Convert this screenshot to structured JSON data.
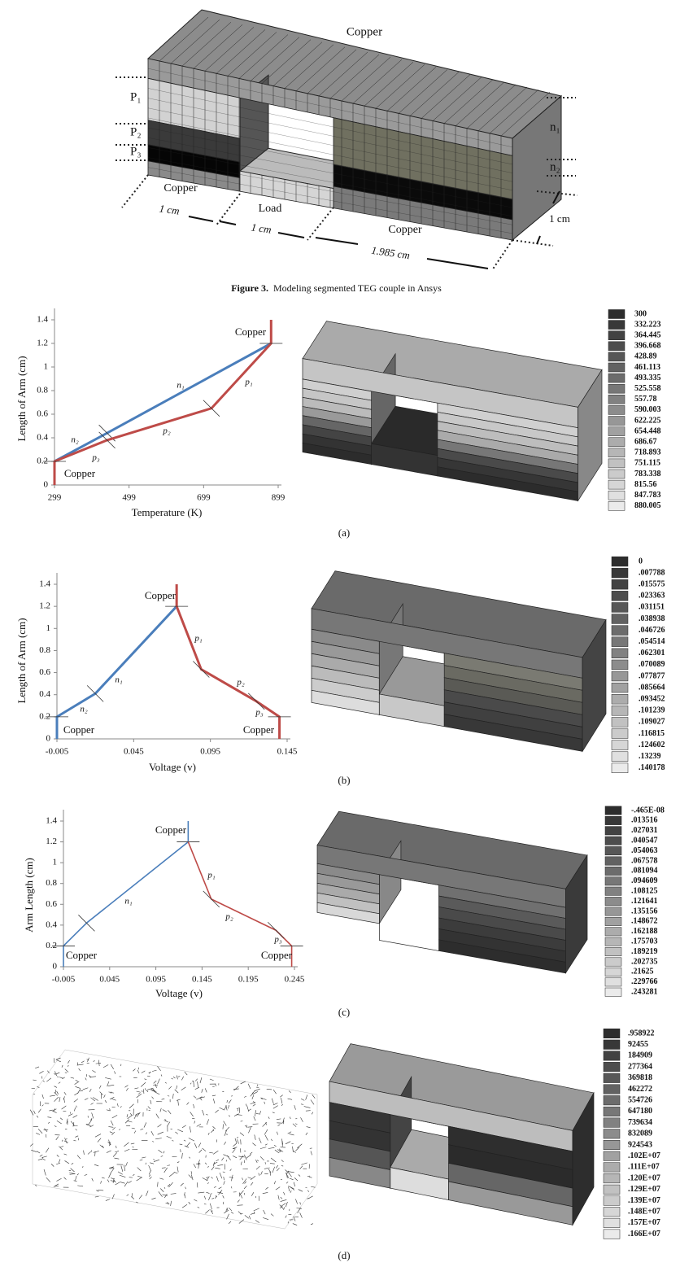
{
  "figure3": {
    "labels": [
      "Copper",
      "P₁",
      "P₂",
      "P₃",
      "n₁",
      "n₂",
      "Copper",
      "Load",
      "Copper"
    ],
    "dimensions": [
      "1 cm",
      "1 cm",
      "1.985 cm",
      "1 cm"
    ],
    "caption": {
      "number": "Figure 3.",
      "text": "Modeling segmented TEG couple in Ansys"
    }
  },
  "chart_data": [
    {
      "type": "line",
      "x_label": "Temperature (K)",
      "y_label": "Length of Arm (cm)",
      "xlim": [
        299,
        899
      ],
      "xticks": [
        299,
        499,
        699,
        899
      ],
      "ylim": [
        0,
        1.4
      ],
      "yticks": [
        0,
        0.2,
        0.4,
        0.6,
        0.8,
        1,
        1.2,
        1.4
      ],
      "series": [
        {
          "color": "#4a7ebb",
          "x": [
            299,
            440,
            880
          ],
          "values": [
            0.2,
            0.44,
            1.2
          ]
        },
        {
          "color": "#be4b48",
          "x": [
            299,
            299,
            440,
            720,
            880,
            880
          ],
          "values": [
            0,
            0.2,
            0.38,
            0.65,
            1.2,
            1.4
          ]
        }
      ],
      "annotations": [
        "Copper",
        "n₁",
        "p₁",
        "p₂",
        "n₂",
        "p₃",
        "Copper"
      ]
    },
    {
      "type": "line",
      "x_label": "Voltage (v)",
      "y_label": "Length of Arm (cm)",
      "xlim": [
        -0.005,
        0.145
      ],
      "xticks": [
        -0.005,
        0.045,
        0.095,
        0.145
      ],
      "ylim": [
        0,
        1.4
      ],
      "yticks": [
        0,
        0.2,
        0.4,
        0.6,
        0.8,
        1,
        1.2,
        1.4
      ],
      "series": [
        {
          "color": "#4a7ebb",
          "x": [
            -0.005,
            -0.005,
            0.02,
            0.073
          ],
          "values": [
            0,
            0.2,
            0.41,
            1.2
          ]
        },
        {
          "color": "#be4b48",
          "x": [
            0.073,
            0.073,
            0.089,
            0.125,
            0.14,
            0.14
          ],
          "values": [
            1.4,
            1.2,
            0.63,
            0.34,
            0.2,
            0
          ]
        }
      ],
      "annotations": [
        "Copper",
        "n₁",
        "p₁",
        "p₂",
        "n₂",
        "p₃",
        "Copper",
        "Copper"
      ]
    },
    {
      "type": "line",
      "x_label": "Voltage  (v)",
      "y_label": "Arm Length (cm)",
      "xlim": [
        -0.005,
        0.245
      ],
      "xticks": [
        -0.005,
        0.045,
        0.095,
        0.145,
        0.195,
        0.245
      ],
      "ylim": [
        0,
        1.4
      ],
      "yticks": [
        0,
        0.2,
        0.4,
        0.6,
        0.8,
        1,
        1.2,
        1.4
      ],
      "series": [
        {
          "color": "#4a7ebb",
          "x": [
            -0.005,
            -0.005,
            0.02,
            0.13,
            0.13
          ],
          "values": [
            0,
            0.2,
            0.42,
            1.2,
            1.4
          ]
        },
        {
          "color": "#be4b48",
          "x": [
            0.13,
            0.155,
            0.225,
            0.242,
            0.242
          ],
          "values": [
            1.2,
            0.65,
            0.35,
            0.2,
            0
          ]
        }
      ],
      "annotations": [
        "Copper",
        "n₁",
        "p₁",
        "p₂",
        "p₃",
        "Copper",
        "Copper"
      ]
    }
  ],
  "legends": [
    [
      "300",
      "332.223",
      "364.445",
      "396.668",
      "428.89",
      "461.113",
      "493.335",
      "525.558",
      "557.78",
      "590.003",
      "622.225",
      "654.448",
      "686.67",
      "718.893",
      "751.115",
      "783.338",
      "815.56",
      "847.783",
      "880.005"
    ],
    [
      "0",
      ".007788",
      ".015575",
      ".023363",
      ".031151",
      ".038938",
      ".046726",
      ".054514",
      ".062301",
      ".070089",
      ".077877",
      ".085664",
      ".093452",
      ".101239",
      ".109027",
      ".116815",
      ".124602",
      ".13239",
      ".140178"
    ],
    [
      "-.465E-08",
      ".013516",
      ".027031",
      ".040547",
      ".054063",
      ".067578",
      ".081094",
      ".094609",
      ".108125",
      ".121641",
      ".135156",
      ".148672",
      ".162188",
      ".175703",
      ".189219",
      ".202735",
      ".21625",
      ".229766",
      ".243281"
    ],
    [
      ".958922",
      "92455",
      "184909",
      "277364",
      "369818",
      "462272",
      "554726",
      "647180",
      "739634",
      "832089",
      "924543",
      ".102E+07",
      ".111E+07",
      ".120E+07",
      ".129E+07",
      ".139E+07",
      ".148E+07",
      ".157E+07",
      ".166E+07"
    ]
  ],
  "panel_labels": [
    "(a)",
    "(b)",
    "(c)",
    "(d)"
  ]
}
